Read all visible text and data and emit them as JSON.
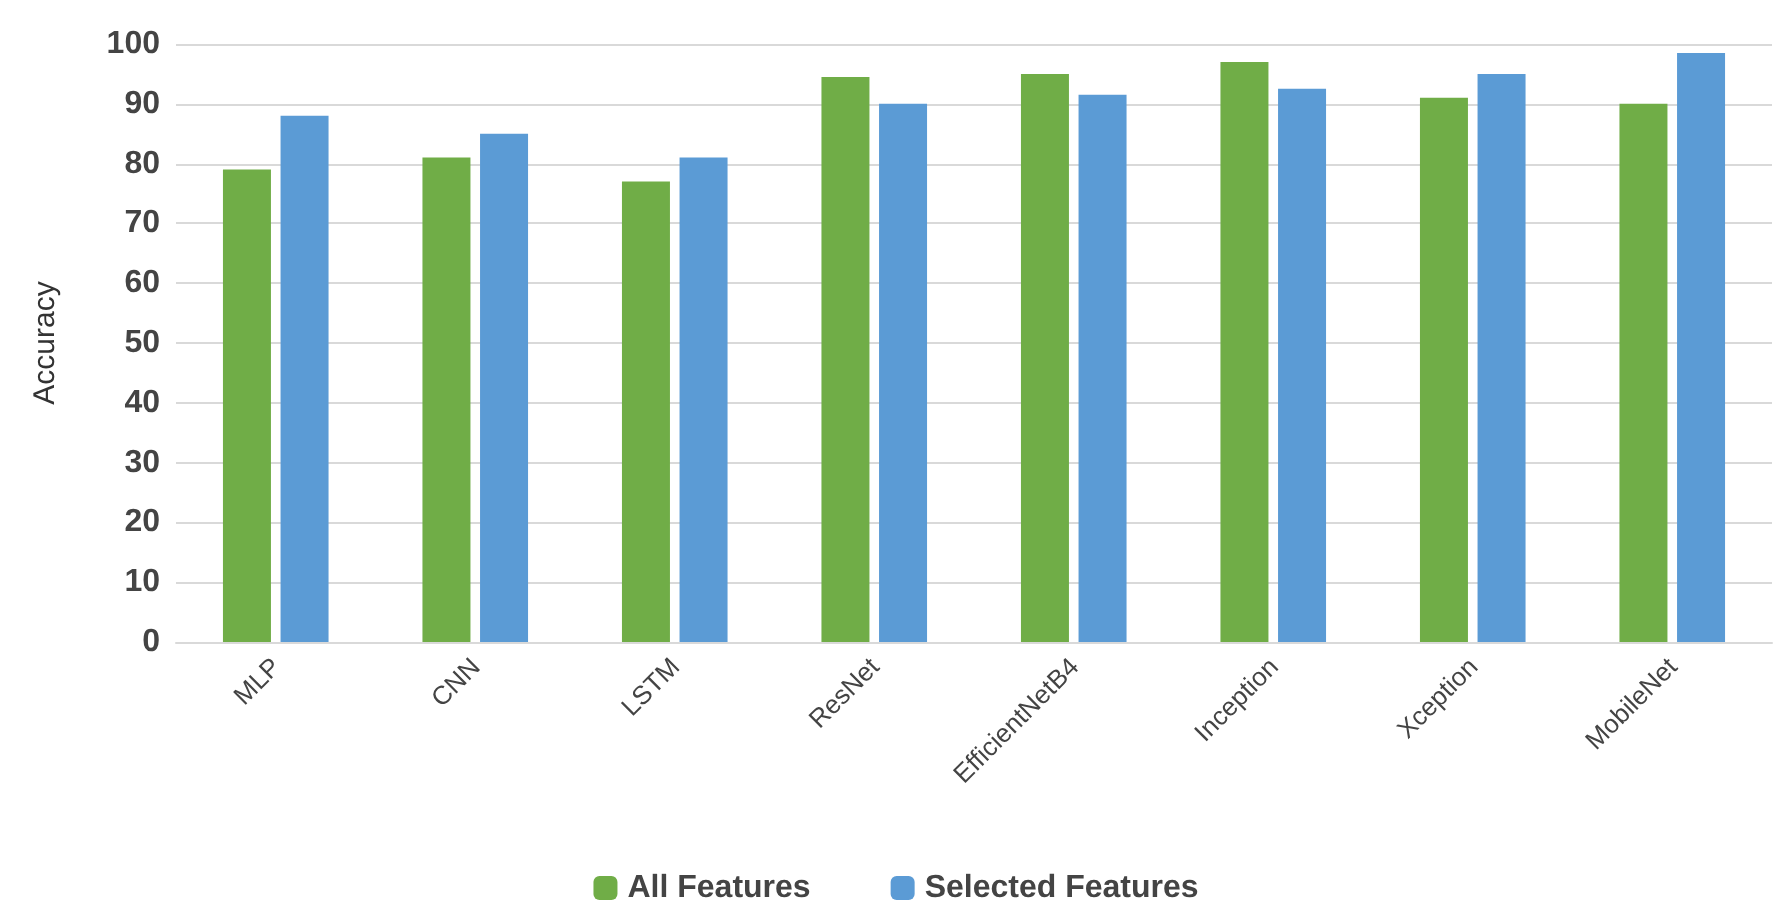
{
  "chart_data": {
    "type": "bar",
    "ylabel": "Accuracy",
    "categories": [
      "MLP",
      "CNN",
      "LSTM",
      "ResNet",
      "EfficientNetB4",
      "Inception",
      "Xception",
      "MobileNet"
    ],
    "series": [
      {
        "name": "All Features",
        "color": "#70ad47",
        "values": [
          79,
          81,
          77,
          94.5,
          95,
          97,
          91,
          90
        ]
      },
      {
        "name": "Selected Features",
        "color": "#5b9bd5",
        "values": [
          88,
          85,
          81,
          90,
          91.5,
          92.5,
          95,
          98.5
        ]
      }
    ],
    "ylim": [
      0,
      100
    ],
    "yticks": [
      0,
      10,
      20,
      30,
      40,
      50,
      60,
      70,
      80,
      90,
      100
    ],
    "grid": "y",
    "legend": "bottom"
  }
}
